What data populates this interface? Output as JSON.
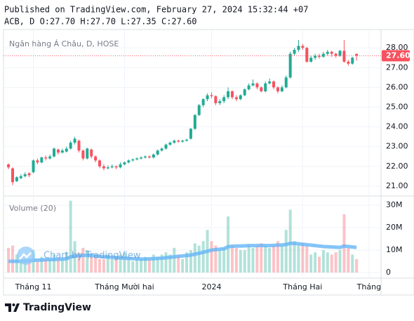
{
  "header": {
    "published": "Published on TradingView.com, February 27, 2024 15:32:44 +07",
    "ohlc": "ACB, D O:27.70 H:27.70 L:27.35 C:27.60"
  },
  "chart_data": {
    "type": "candlestick",
    "symbol_label": "Ngân hàng Á Châu, D, HOSE",
    "volume_label": "Volume (20)",
    "watermark": "Chart by TradingView",
    "brand": "TradingView",
    "up_color": "#22ab94",
    "down_color": "#f7525f",
    "ma_color": "#64b5f6",
    "open": [
      22.1,
      21.9,
      21.25,
      21.4,
      21.5,
      21.65,
      21.7,
      22.3,
      22.2,
      22.45,
      22.4,
      22.5,
      22.85,
      22.7,
      22.75,
      22.9,
      23.2,
      23.3,
      22.8,
      22.4,
      22.85,
      22.5,
      22.3,
      22.0,
      21.9,
      21.95,
      22.0,
      21.95,
      22.1,
      22.2,
      22.3,
      22.35,
      22.4,
      22.45,
      22.5,
      22.45,
      22.6,
      22.8,
      22.9,
      23.1,
      23.2,
      23.3,
      23.25,
      23.3,
      23.4,
      23.9,
      24.6,
      25.1,
      25.4,
      25.6,
      25.55,
      25.2,
      25.3,
      25.5,
      25.8,
      25.5,
      25.4,
      25.6,
      25.9,
      26.1,
      26.2,
      26.0,
      25.8,
      26.2,
      26.3,
      26.0,
      25.8,
      26.0,
      26.5,
      27.7,
      27.9,
      28.1,
      28.0,
      27.3,
      27.5,
      27.6,
      27.55,
      27.7,
      27.8,
      27.7,
      27.6,
      27.85,
      27.3,
      27.2,
      27.7
    ],
    "high": [
      22.15,
      21.95,
      21.5,
      21.6,
      21.7,
      21.7,
      22.35,
      22.4,
      22.5,
      22.55,
      22.6,
      22.95,
      22.9,
      22.9,
      23.0,
      23.3,
      23.5,
      23.35,
      22.85,
      22.95,
      22.9,
      22.55,
      22.35,
      22.1,
      22.05,
      22.1,
      22.05,
      22.2,
      22.25,
      22.35,
      22.4,
      22.45,
      22.5,
      22.55,
      22.55,
      22.65,
      22.85,
      22.95,
      23.15,
      23.25,
      23.35,
      23.35,
      23.35,
      23.4,
      23.95,
      24.65,
      25.15,
      25.45,
      25.7,
      25.75,
      25.6,
      25.4,
      25.6,
      26.0,
      25.85,
      25.6,
      25.65,
      25.95,
      26.2,
      26.4,
      26.25,
      26.05,
      26.3,
      26.45,
      26.35,
      26.05,
      26.1,
      26.6,
      27.8,
      28.0,
      28.4,
      28.2,
      28.05,
      27.6,
      27.7,
      27.7,
      27.8,
      27.9,
      27.85,
      27.75,
      27.9,
      28.4,
      27.4,
      27.55,
      27.7
    ],
    "low": [
      21.85,
      21.05,
      21.2,
      21.35,
      21.45,
      21.45,
      21.65,
      22.1,
      22.15,
      22.3,
      22.35,
      22.45,
      22.6,
      22.65,
      22.7,
      22.85,
      23.1,
      22.7,
      22.3,
      22.35,
      22.4,
      22.2,
      21.9,
      21.8,
      21.85,
      21.9,
      21.85,
      21.9,
      22.05,
      22.15,
      22.25,
      22.3,
      22.35,
      22.4,
      22.4,
      22.4,
      22.55,
      22.75,
      22.85,
      23.05,
      23.15,
      23.2,
      23.2,
      23.25,
      23.35,
      23.85,
      24.55,
      25.0,
      25.3,
      25.45,
      25.1,
      25.1,
      25.2,
      25.4,
      25.4,
      25.3,
      25.35,
      25.55,
      25.85,
      26.05,
      25.9,
      25.75,
      25.75,
      26.15,
      25.9,
      25.7,
      25.75,
      25.95,
      26.45,
      27.6,
      27.8,
      27.9,
      27.25,
      27.25,
      27.4,
      27.45,
      27.5,
      27.6,
      27.55,
      27.5,
      27.55,
      27.25,
      27.1,
      27.15,
      27.35
    ],
    "close": [
      21.95,
      21.2,
      21.45,
      21.5,
      21.6,
      21.55,
      22.3,
      22.2,
      22.45,
      22.4,
      22.5,
      22.9,
      22.7,
      22.8,
      22.9,
      23.2,
      23.4,
      22.8,
      22.4,
      22.9,
      22.5,
      22.3,
      22.0,
      21.9,
      21.95,
      22.0,
      21.95,
      22.1,
      22.2,
      22.3,
      22.35,
      22.4,
      22.45,
      22.5,
      22.45,
      22.6,
      22.8,
      22.9,
      23.1,
      23.2,
      23.3,
      23.25,
      23.3,
      23.35,
      23.9,
      24.6,
      25.1,
      25.4,
      25.6,
      25.55,
      25.2,
      25.3,
      25.5,
      25.8,
      25.5,
      25.4,
      25.6,
      25.9,
      26.1,
      26.2,
      26.0,
      25.8,
      26.2,
      26.3,
      26.0,
      25.8,
      26.0,
      26.5,
      27.7,
      27.9,
      28.1,
      28.0,
      27.3,
      27.5,
      27.6,
      27.55,
      27.7,
      27.8,
      27.7,
      27.6,
      27.85,
      27.3,
      27.2,
      27.5,
      27.6
    ],
    "volume": [
      11,
      12,
      8,
      6,
      5,
      6,
      10,
      5,
      7,
      6,
      6,
      8,
      6,
      6,
      9,
      32,
      14,
      9,
      11,
      10,
      7,
      7,
      6,
      6,
      8,
      6,
      7,
      8,
      9,
      7,
      5,
      6,
      6,
      7,
      6,
      8,
      7,
      8,
      9,
      8,
      11,
      8,
      6,
      9,
      10,
      13,
      12,
      14,
      19,
      14,
      12,
      10,
      11,
      25,
      12,
      11,
      10,
      10,
      12,
      11,
      12,
      13,
      12,
      11,
      12,
      14,
      12,
      19,
      28,
      14,
      12,
      13,
      12,
      8,
      9,
      7,
      10,
      9,
      8,
      9,
      10,
      26,
      11,
      8,
      6
    ],
    "volume_ma": [
      5,
      5,
      5,
      5,
      5.2,
      5.3,
      5.5,
      5.5,
      5.6,
      5.7,
      5.8,
      5.8,
      5.9,
      6,
      6.1,
      7,
      7.3,
      7.5,
      7.6,
      7.8,
      7.6,
      7.4,
      7.2,
      7,
      6.9,
      6.8,
      6.7,
      6.5,
      6.4,
      6.3,
      6.2,
      6.1,
      6,
      6,
      6.1,
      6.2,
      6.3,
      6.4,
      6.6,
      6.8,
      7,
      7.2,
      7.4,
      7.6,
      7.8,
      8.2,
      8.6,
      9,
      9.5,
      10,
      10.2,
      10.4,
      10.6,
      11.5,
      11.7,
      11.8,
      11.8,
      11.9,
      12,
      12,
      12,
      12.1,
      12,
      12,
      12.1,
      12.2,
      12.3,
      12.5,
      13,
      13,
      12.8,
      12.6,
      12.4,
      12.2,
      12,
      11.8,
      11.6,
      11.5,
      11.4,
      11.3,
      11.2,
      11.8,
      11.6,
      11.4,
      11.2
    ],
    "xlim": [
      -1.2,
      89.9
    ],
    "xticks": [
      {
        "value": 6,
        "label": "Tháng 11"
      },
      {
        "value": 28,
        "label": "Tháng Mười hai"
      },
      {
        "value": 49,
        "label": "2024"
      },
      {
        "value": 71,
        "label": "Tháng Hai"
      },
      {
        "value": 87,
        "label": "Tháng"
      }
    ],
    "ylim": [
      20.5,
      28.93
    ],
    "yticks": [
      {
        "value": 21,
        "label": "21.00"
      },
      {
        "value": 22,
        "label": "22.00"
      },
      {
        "value": 23,
        "label": "23.00"
      },
      {
        "value": 24,
        "label": "24.00"
      },
      {
        "value": 25,
        "label": "25.00"
      },
      {
        "value": 26,
        "label": "26.00"
      },
      {
        "value": 27,
        "label": "27.00"
      },
      {
        "value": 28,
        "label": "28.00"
      }
    ],
    "last_price": {
      "value": 27.6,
      "label": "27.60"
    },
    "vlim": [
      -2.5,
      33.8
    ],
    "vticks": [
      0,
      {
        "value": 10,
        "label": "10M"
      },
      {
        "value": 20,
        "label": "20M"
      },
      {
        "value": 30,
        "label": "30M"
      }
    ],
    "grid": true
  }
}
